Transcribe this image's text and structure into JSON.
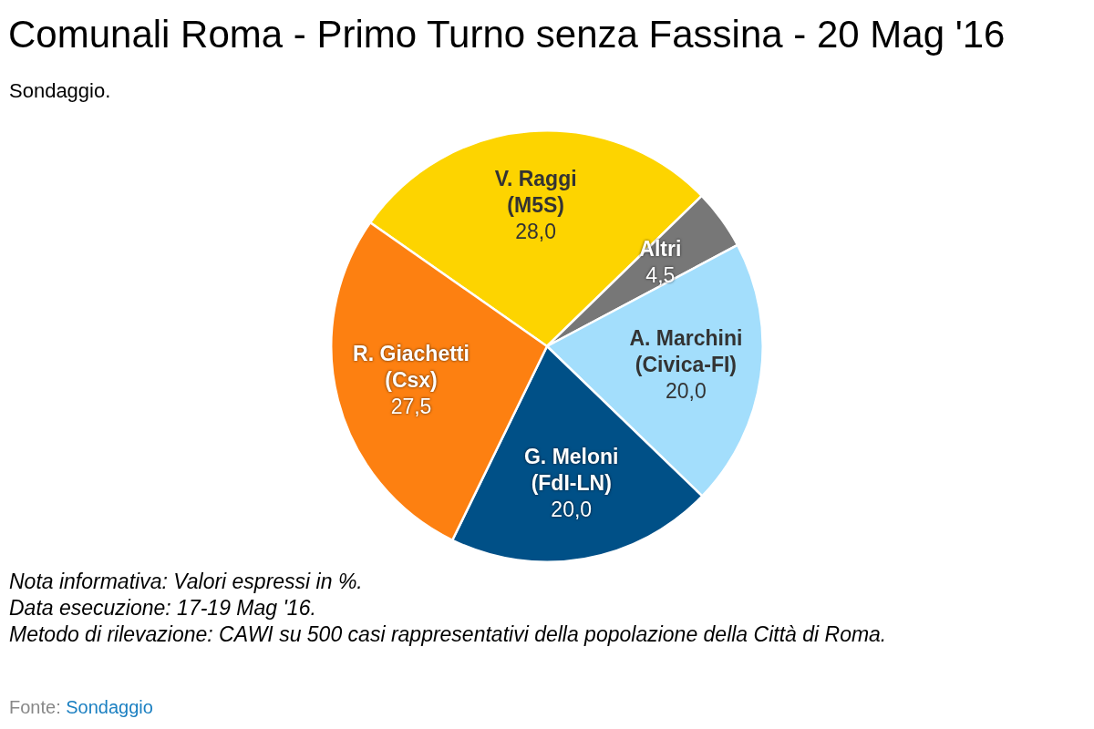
{
  "chart_data": {
    "type": "pie",
    "title": "Comunali Roma - Primo Turno senza Fassina - 20 Mag '16",
    "subtitle": "Sondaggio.",
    "categories": [
      "V. Raggi\n(M5S)",
      "Altri",
      "A. Marchini\n(Civica-FI)",
      "G. Meloni\n(FdI-LN)",
      "R. Giachetti\n(Csx)"
    ],
    "values": [
      28.0,
      4.5,
      20.0,
      20.0,
      27.5
    ],
    "value_labels": [
      "28,0",
      "4,5",
      "20,0",
      "20,0",
      "27,5"
    ],
    "colors": [
      "#fdd400",
      "#777777",
      "#a3defc",
      "#005087",
      "#fd8011"
    ],
    "annotations": [
      "Nota informativa: Valori espressi in %.",
      "Data esecuzione: 17-19 Mag '16.",
      "Metodo di rilevazione: CAWI su 500 casi rappresentativi della popolazione della Città di Roma.",
      "Fonte: Sondaggio"
    ]
  }
}
